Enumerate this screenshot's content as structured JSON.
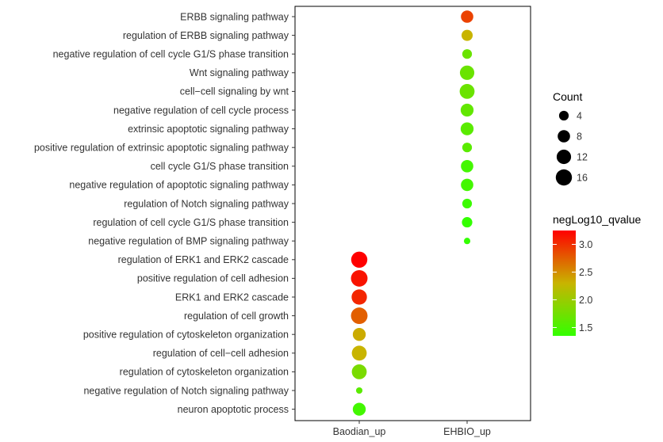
{
  "chart_data": {
    "type": "scatter",
    "subtype": "dot-plot",
    "x_categories": [
      "Baodian_up",
      "EHBIO_up"
    ],
    "y_categories": [
      "ERBB signaling pathway",
      "regulation of ERBB signaling pathway",
      "negative regulation of cell cycle G1/S phase transition",
      "Wnt signaling pathway",
      "cell−cell signaling by wnt",
      "negative regulation of cell cycle process",
      "extrinsic apoptotic signaling pathway",
      "positive regulation of extrinsic apoptotic signaling pathway",
      "cell cycle G1/S phase transition",
      "negative regulation of apoptotic signaling pathway",
      "regulation of Notch signaling pathway",
      "regulation of cell cycle G1/S phase transition",
      "negative regulation of BMP signaling pathway",
      "regulation of ERK1 and ERK2 cascade",
      "positive regulation of cell adhesion",
      "ERK1 and ERK2 cascade",
      "regulation of cell growth",
      "positive regulation of cytoskeleton organization",
      "regulation of cell−cell adhesion",
      "regulation of cytoskeleton organization",
      "negative regulation of Notch signaling pathway",
      "neuron apoptotic process"
    ],
    "points": [
      {
        "term": "ERBB signaling pathway",
        "group": "EHBIO_up",
        "count": 8,
        "qvalue": 2.9
      },
      {
        "term": "regulation of ERBB signaling pathway",
        "group": "EHBIO_up",
        "count": 6,
        "qvalue": 2.3
      },
      {
        "term": "negative regulation of cell cycle G1/S phase transition",
        "group": "EHBIO_up",
        "count": 4,
        "qvalue": 1.7
      },
      {
        "term": "Wnt signaling pathway",
        "group": "EHBIO_up",
        "count": 12,
        "qvalue": 1.7
      },
      {
        "term": "cell−cell signaling by wnt",
        "group": "EHBIO_up",
        "count": 13,
        "qvalue": 1.7
      },
      {
        "term": "negative regulation of cell cycle process",
        "group": "EHBIO_up",
        "count": 9,
        "qvalue": 1.65
      },
      {
        "term": "extrinsic apoptotic signaling pathway",
        "group": "EHBIO_up",
        "count": 9,
        "qvalue": 1.6
      },
      {
        "term": "positive regulation of extrinsic apoptotic signaling pathway",
        "group": "EHBIO_up",
        "count": 4,
        "qvalue": 1.6
      },
      {
        "term": "cell cycle G1/S phase transition",
        "group": "EHBIO_up",
        "count": 8,
        "qvalue": 1.45
      },
      {
        "term": "negative regulation of apoptotic signaling pathway",
        "group": "EHBIO_up",
        "count": 8,
        "qvalue": 1.45
      },
      {
        "term": "regulation of Notch signaling pathway",
        "group": "EHBIO_up",
        "count": 4,
        "qvalue": 1.4
      },
      {
        "term": "regulation of cell cycle G1/S phase transition",
        "group": "EHBIO_up",
        "count": 5,
        "qvalue": 1.35
      },
      {
        "term": "negative regulation of BMP signaling pathway",
        "group": "EHBIO_up",
        "count": 1,
        "qvalue": 1.35
      },
      {
        "term": "regulation of ERK1 and ERK2 cascade",
        "group": "Baodian_up",
        "count": 16,
        "qvalue": 3.25
      },
      {
        "term": "positive regulation of cell adhesion",
        "group": "Baodian_up",
        "count": 17,
        "qvalue": 3.15
      },
      {
        "term": "ERK1 and ERK2 cascade",
        "group": "Baodian_up",
        "count": 14,
        "qvalue": 3.05
      },
      {
        "term": "regulation of cell growth",
        "group": "Baodian_up",
        "count": 17,
        "qvalue": 2.75
      },
      {
        "term": "positive regulation of cytoskeleton organization",
        "group": "Baodian_up",
        "count": 9,
        "qvalue": 2.35
      },
      {
        "term": "regulation of cell−cell adhesion",
        "group": "Baodian_up",
        "count": 13,
        "qvalue": 2.3
      },
      {
        "term": "regulation of cytoskeleton organization",
        "group": "Baodian_up",
        "count": 13,
        "qvalue": 1.8
      },
      {
        "term": "negative regulation of Notch signaling pathway",
        "group": "Baodian_up",
        "count": 1,
        "qvalue": 1.6
      },
      {
        "term": "neuron apoptotic process",
        "group": "Baodian_up",
        "count": 9,
        "qvalue": 1.45
      }
    ],
    "size_legend": {
      "title": "Count",
      "values": [
        4,
        8,
        12,
        16
      ]
    },
    "color_legend": {
      "title": "negLog10_qvalue",
      "ticks": [
        1.5,
        2.0,
        2.5,
        3.0
      ],
      "tick_labels": [
        "1.5",
        "2.0",
        "2.5",
        "3.0"
      ],
      "range": [
        1.35,
        3.25
      ],
      "low_color": "#33ff00",
      "high_color": "#ff0000"
    },
    "xlabel": "",
    "ylabel": "",
    "legend_position": "right"
  }
}
